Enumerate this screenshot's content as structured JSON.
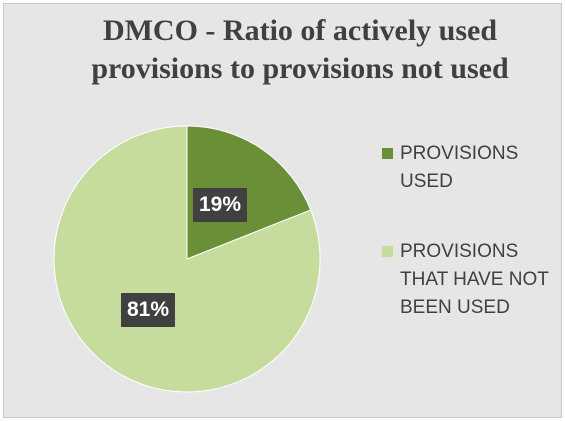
{
  "chart_data": {
    "type": "pie",
    "title": "DMCO - Ratio of actively used provisions to provisions not used",
    "categories": [
      "PROVISIONS USED",
      "PROVISIONS THAT HAVE NOT BEEN USED"
    ],
    "values": [
      19,
      81
    ],
    "value_labels": [
      "19%",
      "81%"
    ],
    "colors": [
      "#6a8f36",
      "#c5dc9c"
    ],
    "legend_position": "right"
  }
}
